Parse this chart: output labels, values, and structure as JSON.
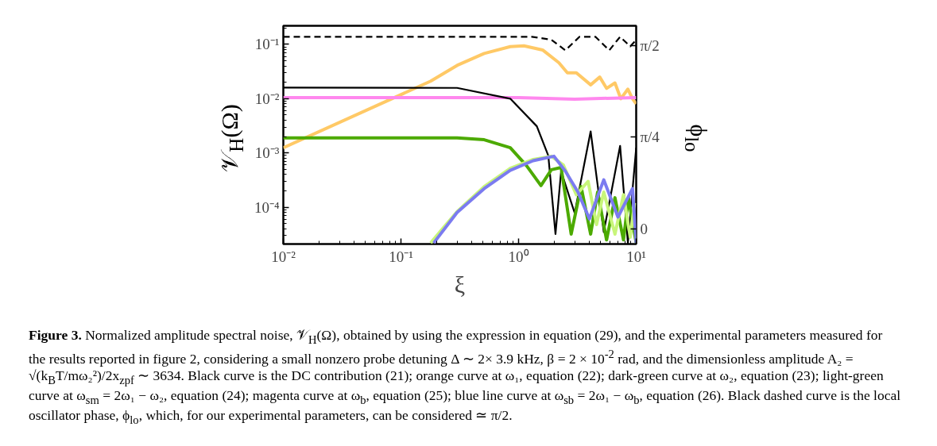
{
  "chart_data": {
    "type": "line",
    "log": "xy",
    "grid": false,
    "xlabel": "ξ",
    "ylabel": "𝒱$_{H}$(Ω)",
    "y2label": "ϕ$_{lo}$",
    "xlim": [
      0.01,
      10
    ],
    "ylim": [
      2.1e-05,
      0.22
    ],
    "y2lim": [
      -0.13,
      1.74
    ],
    "xticks": [
      {
        "value": 0.01,
        "label": "10⁻²"
      },
      {
        "value": 0.1,
        "label": "10⁻¹"
      },
      {
        "value": 1,
        "label": "10⁰"
      },
      {
        "value": 10,
        "label": "10¹"
      }
    ],
    "yticks": [
      {
        "value": 0.0001,
        "label": "10⁻⁴"
      },
      {
        "value": 0.001,
        "label": "10⁻³"
      },
      {
        "value": 0.01,
        "label": "10⁻²"
      },
      {
        "value": 0.1,
        "label": "10⁻¹"
      }
    ],
    "y2ticks": [
      0,
      {
        "value": 0.7854,
        "label": "π/4"
      },
      {
        "value": 1.5708,
        "label": "π/2"
      }
    ],
    "series": [
      {
        "color": "#ffc966",
        "x": [
          0.01,
          0.179,
          0.3,
          0.51,
          0.85,
          1.11,
          1.6,
          2.2,
          2.6,
          3.1,
          4.1,
          4.9,
          5.6,
          6.6,
          7.4,
          8.5,
          9.3,
          10
        ],
        "values": [
          0.00125,
          0.021,
          0.041,
          0.068,
          0.091,
          0.094,
          0.079,
          0.046,
          0.03,
          0.03,
          0.018,
          0.025,
          0.0155,
          0.0195,
          0.01,
          0.015,
          0.01,
          0.008
        ]
      },
      {
        "color": "#ff88ee",
        "x": [
          0.01,
          1,
          3,
          10
        ],
        "values": [
          0.0105,
          0.0105,
          0.0098,
          0.0105
        ]
      },
      {
        "color": "#000000",
        "x": [
          0.01,
          0.3,
          0.85,
          1.43,
          1.79,
          2.06,
          2.3,
          3.0,
          4.1,
          5.3,
          7.3,
          8.5,
          10
        ],
        "values": [
          0.016,
          0.0158,
          0.01,
          0.0031,
          0.00089,
          3.2e-05,
          0.00046,
          7.8e-05,
          0.0025,
          3.5e-05,
          0.00135,
          2.2e-05,
          0.00125
        ]
      },
      {
        "color": "#4caa00",
        "x": [
          0.01,
          0.3,
          0.51,
          0.85,
          1.17,
          1.55,
          1.9,
          2.3,
          2.8,
          3.4,
          4.1,
          4.7,
          5.6,
          6.6,
          7.8,
          8.6,
          10
        ],
        "values": [
          0.0019,
          0.0019,
          0.00175,
          0.00125,
          0.00058,
          0.00025,
          0.00049,
          0.00054,
          3.2e-05,
          0.00024,
          3.2e-05,
          0.00019,
          2.5e-05,
          0.00015,
          2.5e-05,
          0.00015,
          2.2e-05
        ]
      },
      {
        "color": "#c8f57a",
        "x": [
          0.179,
          0.23,
          0.3,
          0.51,
          0.85,
          1.33,
          1.9,
          2.4,
          3.1,
          3.9,
          4.6,
          5.3,
          6.6,
          7.8,
          8.9,
          9.7
        ],
        "values": [
          2.2e-05,
          4.2e-05,
          8.3e-05,
          0.00024,
          0.00052,
          0.00076,
          0.00087,
          0.0006,
          0.00017,
          0.0003,
          4.8e-05,
          0.00019,
          3.2e-05,
          0.00017,
          2.8e-05,
          0.00012
        ]
      },
      {
        "color": "#7b7bf0",
        "x": [
          0.19,
          0.3,
          0.51,
          0.85,
          1.33,
          2.0,
          2.5,
          3.2,
          4.0,
          5.3,
          7.0,
          9.3,
          10
        ],
        "values": [
          2.2e-05,
          8e-05,
          0.00022,
          0.00048,
          0.00072,
          0.00087,
          0.00046,
          0.00019,
          6.1e-05,
          0.00032,
          6.6e-05,
          0.00022,
          2.2e-05
        ]
      },
      {
        "color": "#000000",
        "axis": "y2",
        "line_style": "dashed",
        "x": [
          0.01,
          1.3,
          1.9,
          2.5,
          3.3,
          4.5,
          5.9,
          7.3,
          8.9,
          10
        ],
        "values": [
          1.646,
          1.646,
          1.62,
          1.53,
          1.646,
          1.646,
          1.53,
          1.646,
          1.564,
          1.619
        ]
      }
    ],
    "annotations": [
      "Figure 3.",
      "Normalized amplitude spectral noise, 𝒱$_{H}$(Ω), obtained by using the expression in equation (29), and the experimental parameters measured for the results reported in figure 2, considering a small nonzero probe detuning Δ ∼ 2× 3.9 kHz, β = 2 × 10$^{-2}$ rad, and the dimensionless amplitude A₂ = √(k$_{B}$T/mω₂²)/2x$_{zpf}$ ∼ 3634. Black curve is the DC contribution (21); orange curve at ω₁, equation (22); dark-green curve at ω₂, equation (23); light-green curve at ω$_{sm}$ = 2ω₁ − ω₂, equation (24); magenta curve at ω$_{b}$, equation (25); blue line curve at ω$_{sb}$ = 2ω₁ − ω$_{b}$, equation (26). Black dashed curve is the local oscillator phase, ϕ$_{lo}$, which, for our experimental parameters, can be considered ≃ π/2."
    ]
  }
}
